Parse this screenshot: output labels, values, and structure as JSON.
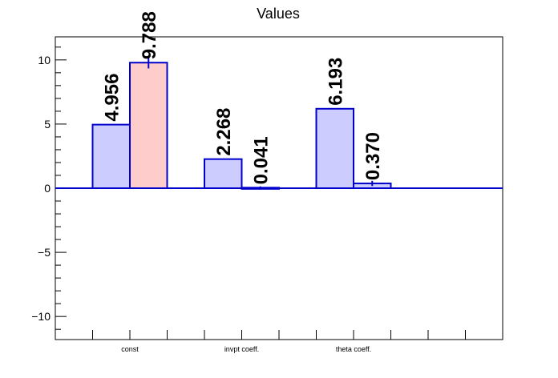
{
  "chart_data": {
    "type": "bar",
    "title": "Values",
    "xlabel": "",
    "ylabel": "",
    "ylim": [
      -11.8,
      11.8
    ],
    "yticks": [
      -10,
      -5,
      0,
      5,
      10
    ],
    "ytick_labels": [
      "−10",
      "−5",
      "0",
      "5",
      "10"
    ],
    "categories": [
      "const",
      "invpt coeff.",
      "theta coeff."
    ],
    "series": [
      {
        "values": [
          4.956,
          2.268,
          6.193
        ],
        "labels": [
          "4.956",
          "2.268",
          "6.193"
        ],
        "errors": [
          0,
          0,
          0
        ]
      },
      {
        "values": [
          9.788,
          0.041,
          0.37
        ],
        "labels": [
          "9.788",
          "0.041",
          "0.370"
        ],
        "errors": [
          0.45,
          0.1,
          0.2
        ]
      }
    ],
    "colors": {
      "bar_fill_1": "#ccccff",
      "bar_fill_2_first": "#ffcccc",
      "bar_fill_2_rest": "#ccccff",
      "bar_stroke": "#0000cc",
      "zero_line": "#0000cc",
      "frame": "#000000"
    },
    "grid": false,
    "legend": "none"
  }
}
